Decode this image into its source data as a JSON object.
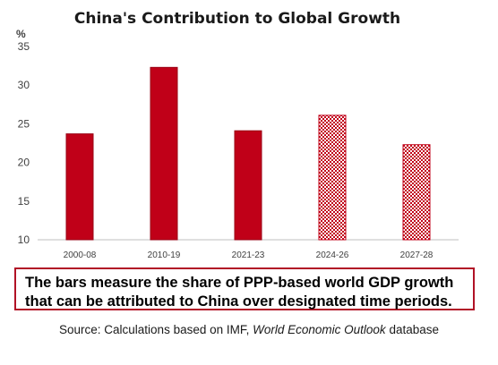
{
  "chart_data": {
    "type": "bar",
    "title": "China's Contribution to Global Growth",
    "unit_label": "%",
    "categories": [
      "2000-08",
      "2010-19",
      "2021-23",
      "2024-26",
      "2027-28"
    ],
    "values": [
      23.7,
      32.3,
      24.1,
      26.1,
      22.3
    ],
    "hatched": [
      false,
      false,
      false,
      true,
      true
    ],
    "ylim": [
      10,
      35
    ],
    "yticks": [
      10,
      15,
      20,
      25,
      30,
      35
    ],
    "grid": false,
    "bar_color": "#c00018",
    "hatch_color": "#c00018"
  },
  "note": {
    "line1": "The bars measure the share of PPP-based world GDP growth",
    "line2": "that can be attributed to China over designated time periods.",
    "border_color": "#b11226"
  },
  "source": {
    "prefix": "Source: Calculations based on IMF, ",
    "italic": "World Economic Outlook",
    "suffix": " database"
  }
}
